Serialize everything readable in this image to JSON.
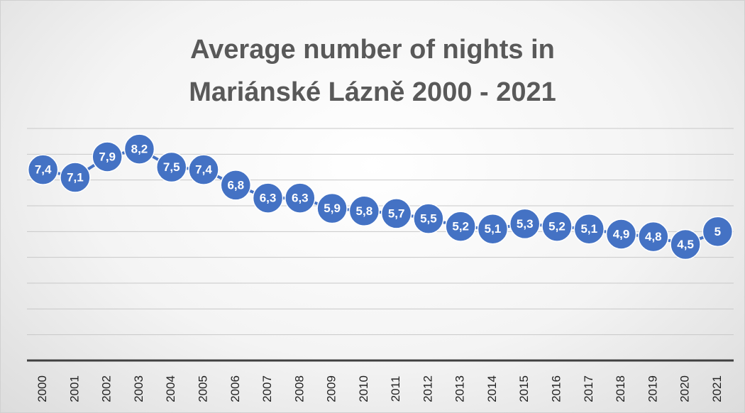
{
  "chart_data": {
    "type": "line",
    "title": "Average number of nights in Mariánské Lázně 2000 - 2021",
    "categories": [
      "2000",
      "2001",
      "2002",
      "2003",
      "2004",
      "2005",
      "2006",
      "2007",
      "2008",
      "2009",
      "2010",
      "2011",
      "2012",
      "2013",
      "2014",
      "2015",
      "2016",
      "2017",
      "2018",
      "2019",
      "2020",
      "2021"
    ],
    "values": [
      7.4,
      7.1,
      7.9,
      8.2,
      7.5,
      7.4,
      6.8,
      6.3,
      6.3,
      5.9,
      5.8,
      5.7,
      5.5,
      5.2,
      5.1,
      5.3,
      5.2,
      5.1,
      4.9,
      4.8,
      4.5,
      5
    ],
    "value_labels": [
      "7,4",
      "7,1",
      "7,9",
      "8,2",
      "7,5",
      "7,4",
      "6,8",
      "6,3",
      "6,3",
      "5,9",
      "5,8",
      "5,7",
      "5,5",
      "5,2",
      "5,1",
      "5,3",
      "5,2",
      "5,1",
      "4,9",
      "4,8",
      "4,5",
      "5"
    ],
    "color": "#4472c4",
    "ylim": [
      0,
      9
    ],
    "yticks": [
      0,
      1,
      2,
      3,
      4,
      5,
      6,
      7,
      8,
      9
    ],
    "grid": true
  }
}
